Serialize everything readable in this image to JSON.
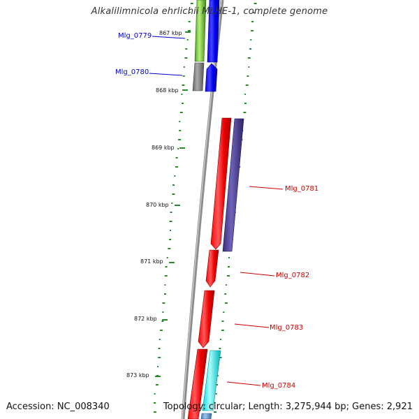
{
  "title": "Alkalilimnicola ehrlichii MLHE-1, complete genome",
  "footer": {
    "accession": "Accession: NC_008340",
    "summary": "Topology: circular; Length: 3,275,944 bp; Genes: 2,921"
  },
  "ticks": [
    "867 kbp",
    "868 kbp",
    "869 kbp",
    "870 kbp",
    "871 kbp",
    "872 kbp",
    "873 kbp"
  ],
  "genes": [
    {
      "label": "Mlg_0779",
      "strand": "reverse",
      "color": "#0000cc"
    },
    {
      "label": "Mlg_0780",
      "strand": "reverse",
      "color": "#0000cc"
    },
    {
      "label": "Mlg_0781",
      "strand": "forward",
      "color": "#cc0000"
    },
    {
      "label": "Mlg_0782",
      "strand": "forward",
      "color": "#cc0000"
    },
    {
      "label": "Mlg_0783",
      "strand": "forward",
      "color": "#cc0000"
    },
    {
      "label": "Mlg_0784",
      "strand": "forward",
      "color": "#cc0000"
    }
  ],
  "colors": {
    "backbone": "#888888",
    "cds_forward": "#ff0000",
    "cds_reverse": "#0000ff",
    "orf_green": "#66cc33",
    "orf_grey": "#777777",
    "orf_purple": "#4b3f8f",
    "orf_cyan": "#00dddd",
    "orf_steel": "#5b8fc7",
    "gc_dots": "#2a8a2a"
  }
}
